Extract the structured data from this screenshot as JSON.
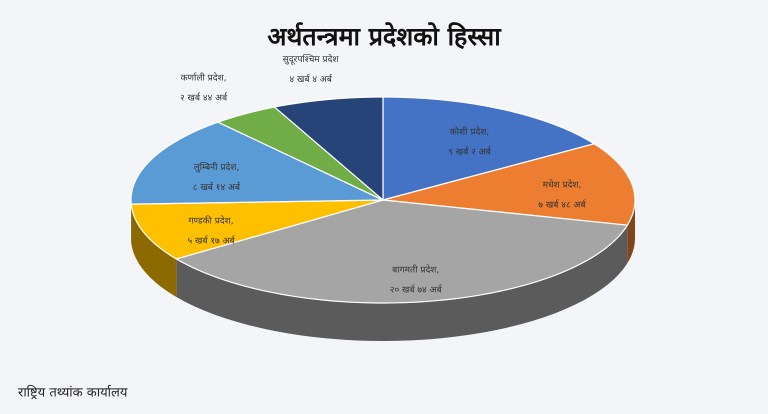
{
  "chart_data": {
    "type": "pie3d",
    "title": "अर्थतन्त्रमा प्रदेशको हिस्सा",
    "categories": [
      "कोशी प्रदेश,",
      "मधेश प्रदेश,",
      "बागमती प्रदेश,",
      "गण्डकी प्रदेश,",
      "लुम्बिनी प्रदेश,",
      "कर्णाली प्रदेश,",
      "सुदूरपश्चिम प्रदेश"
    ],
    "values": [
      902,
      748,
      2074,
      517,
      814,
      244,
      404
    ],
    "value_labels": [
      "९ खर्ब २ अर्ब",
      "७ खर्ब ४८ अर्ब",
      "२० खर्ब ७४ अर्ब",
      "५ खर्ब १७ अर्ब",
      "८ खर्ब १४ अर्ब",
      "२ खर्ब ४४ अर्ब",
      "४ खर्ब ४ अर्ब"
    ],
    "colors": [
      "#4472c4",
      "#ed7d31",
      "#a5a5a5",
      "#ffc000",
      "#5b9bd5",
      "#70ad47",
      "#264478"
    ]
  },
  "footer": "राष्ट्रिय तथ्यांक कार्यालय"
}
